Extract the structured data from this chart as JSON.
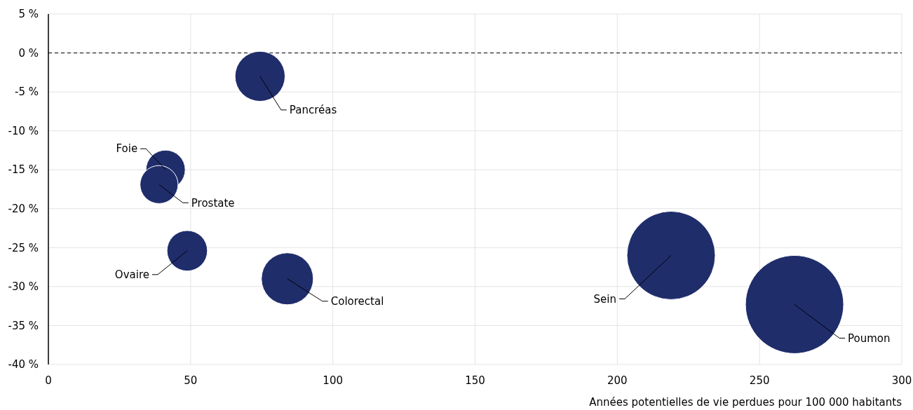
{
  "chart_data": {
    "type": "bubble",
    "xlabel": "Années potentielles de vie perdues pour 100 000 habitants",
    "x": [
      74.4,
      41.2,
      38.9,
      48.8,
      84.0,
      218.9,
      262.3
    ],
    "series": [
      {
        "color": "#1f2d6b",
        "values": [
          -3.0,
          -15.0,
          -16.9,
          -25.4,
          -29.0,
          -26.0,
          -32.3
        ],
        "sizes": [
          0.26,
          0.16,
          0.15,
          0.17,
          0.28,
          0.81,
          1
        ]
      }
    ],
    "xlim": [
      0,
      300
    ],
    "xticks": [
      0,
      50,
      100,
      150,
      200,
      250,
      300
    ],
    "ylim": [
      -40,
      5
    ],
    "yticks": [
      {
        "value": 5,
        "label": "5 %"
      },
      {
        "value": 0,
        "label": "0 %"
      },
      {
        "value": -5,
        "label": "-5 %"
      },
      {
        "value": -10,
        "label": "-10 %"
      },
      {
        "value": -15,
        "label": "-15 %"
      },
      {
        "value": -20,
        "label": "-20 %"
      },
      {
        "value": -25,
        "label": "-25 %"
      },
      {
        "value": -30,
        "label": "-30 %"
      },
      {
        "value": -35,
        "label": "-35 %"
      },
      {
        "value": -40,
        "label": "-40 %"
      }
    ],
    "grid": true,
    "ref_lines": [
      {
        "axis": "y",
        "value": 0,
        "color": "#000000",
        "line_style": "dashed"
      }
    ],
    "annotations": [
      {
        "text": "Pancréas",
        "x": 74.4,
        "y": -3.0
      },
      {
        "text": "Foie",
        "x": 41.2,
        "y": -15.0
      },
      {
        "text": "Prostate",
        "x": 38.9,
        "y": -16.9
      },
      {
        "text": "Ovaire",
        "x": 48.8,
        "y": -25.4
      },
      {
        "text": "Colorectal",
        "x": 84.0,
        "y": -29.0
      },
      {
        "text": "Sein",
        "x": 218.9,
        "y": -26.0
      },
      {
        "text": "Poumon",
        "x": 262.3,
        "y": -32.3
      }
    ]
  }
}
